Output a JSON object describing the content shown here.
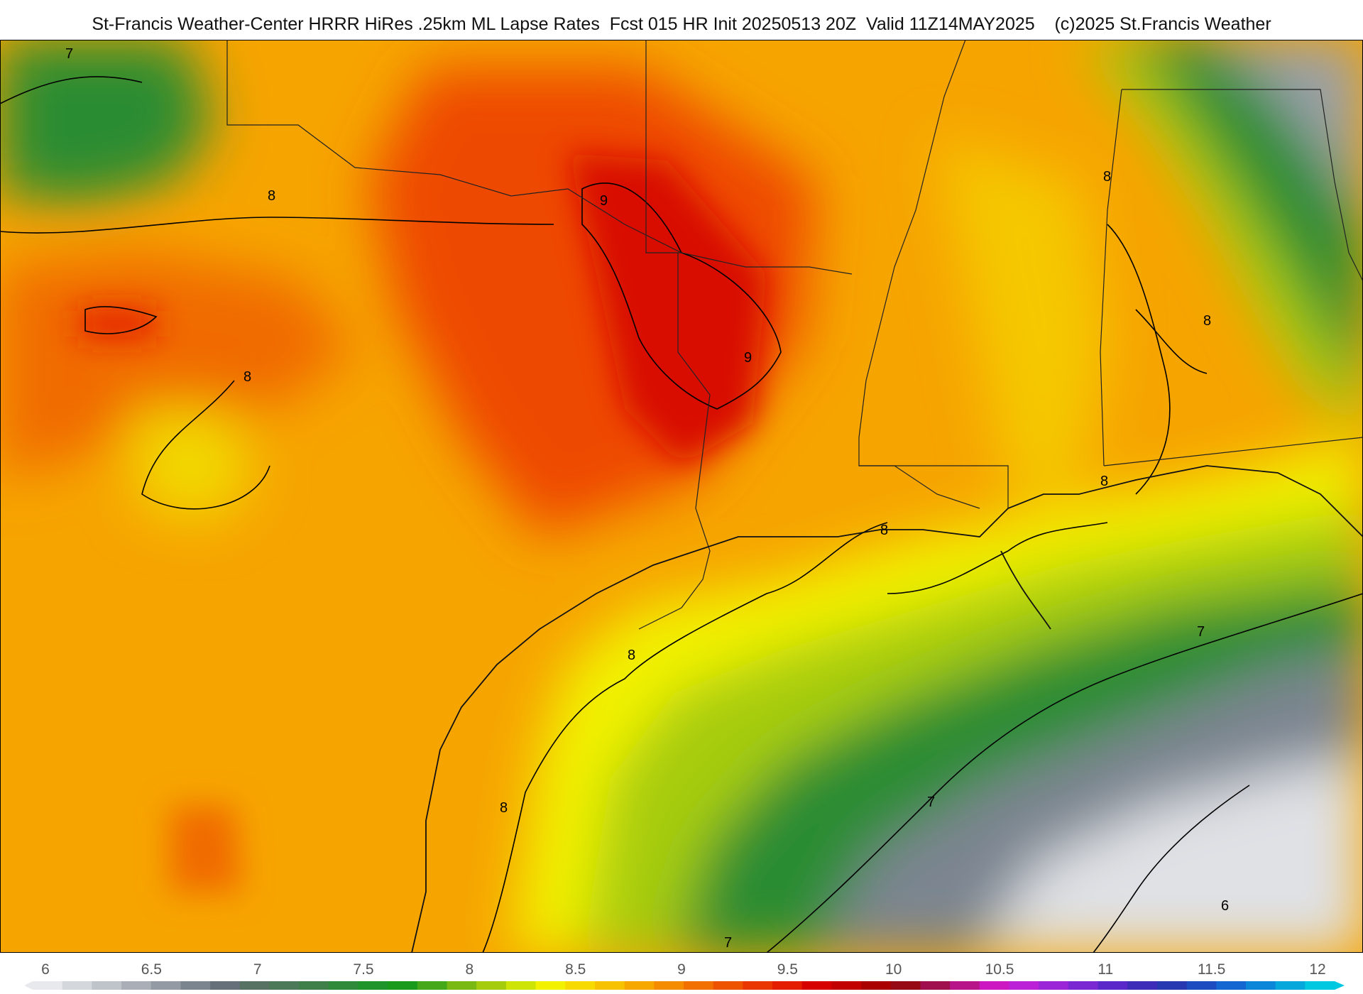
{
  "header": {
    "title": "St-Francis Weather-Center HRRR HiRes .25km ML Lapse Rates  Fcst 015 HR Init 20250513 20Z  Valid 11Z14MAY2025    (c)2025 St.Francis Weather"
  },
  "map": {
    "field": "ML Lapse Rates",
    "contour_labels": [
      "7",
      "8",
      "8",
      "8",
      "8",
      "9",
      "9",
      "8",
      "8",
      "8",
      "8",
      "7",
      "7",
      "7",
      "6"
    ]
  },
  "colorbar": {
    "ticks": [
      "6",
      "6.5",
      "7",
      "7.5",
      "8",
      "8.5",
      "9",
      "9.5",
      "10",
      "10.5",
      "11",
      "11.5",
      "12"
    ],
    "colors": [
      "#e8e9ec",
      "#d4d7dc",
      "#bfc3ca",
      "#a9aeb7",
      "#939aa4",
      "#7b8590",
      "#65707b",
      "#577262",
      "#4c7a58",
      "#3f7f4a",
      "#2f8a3a",
      "#1f942a",
      "#1a9a1a",
      "#45a818",
      "#7ab814",
      "#a6cc0e",
      "#cde406",
      "#f2f200",
      "#f6da00",
      "#f7c200",
      "#f7a800",
      "#f58c00",
      "#f27000",
      "#ee5400",
      "#ea3600",
      "#e41c00",
      "#d60000",
      "#c20000",
      "#ab0000",
      "#950a14",
      "#a0104e",
      "#b8148a",
      "#cc18c0",
      "#bb22d8",
      "#9a26d8",
      "#7a28d2",
      "#5a28c8",
      "#3c2cb8",
      "#2838b0",
      "#1c4cc0",
      "#1466d0",
      "#0c86d8",
      "#06a8dc",
      "#00c8e0"
    ]
  }
}
